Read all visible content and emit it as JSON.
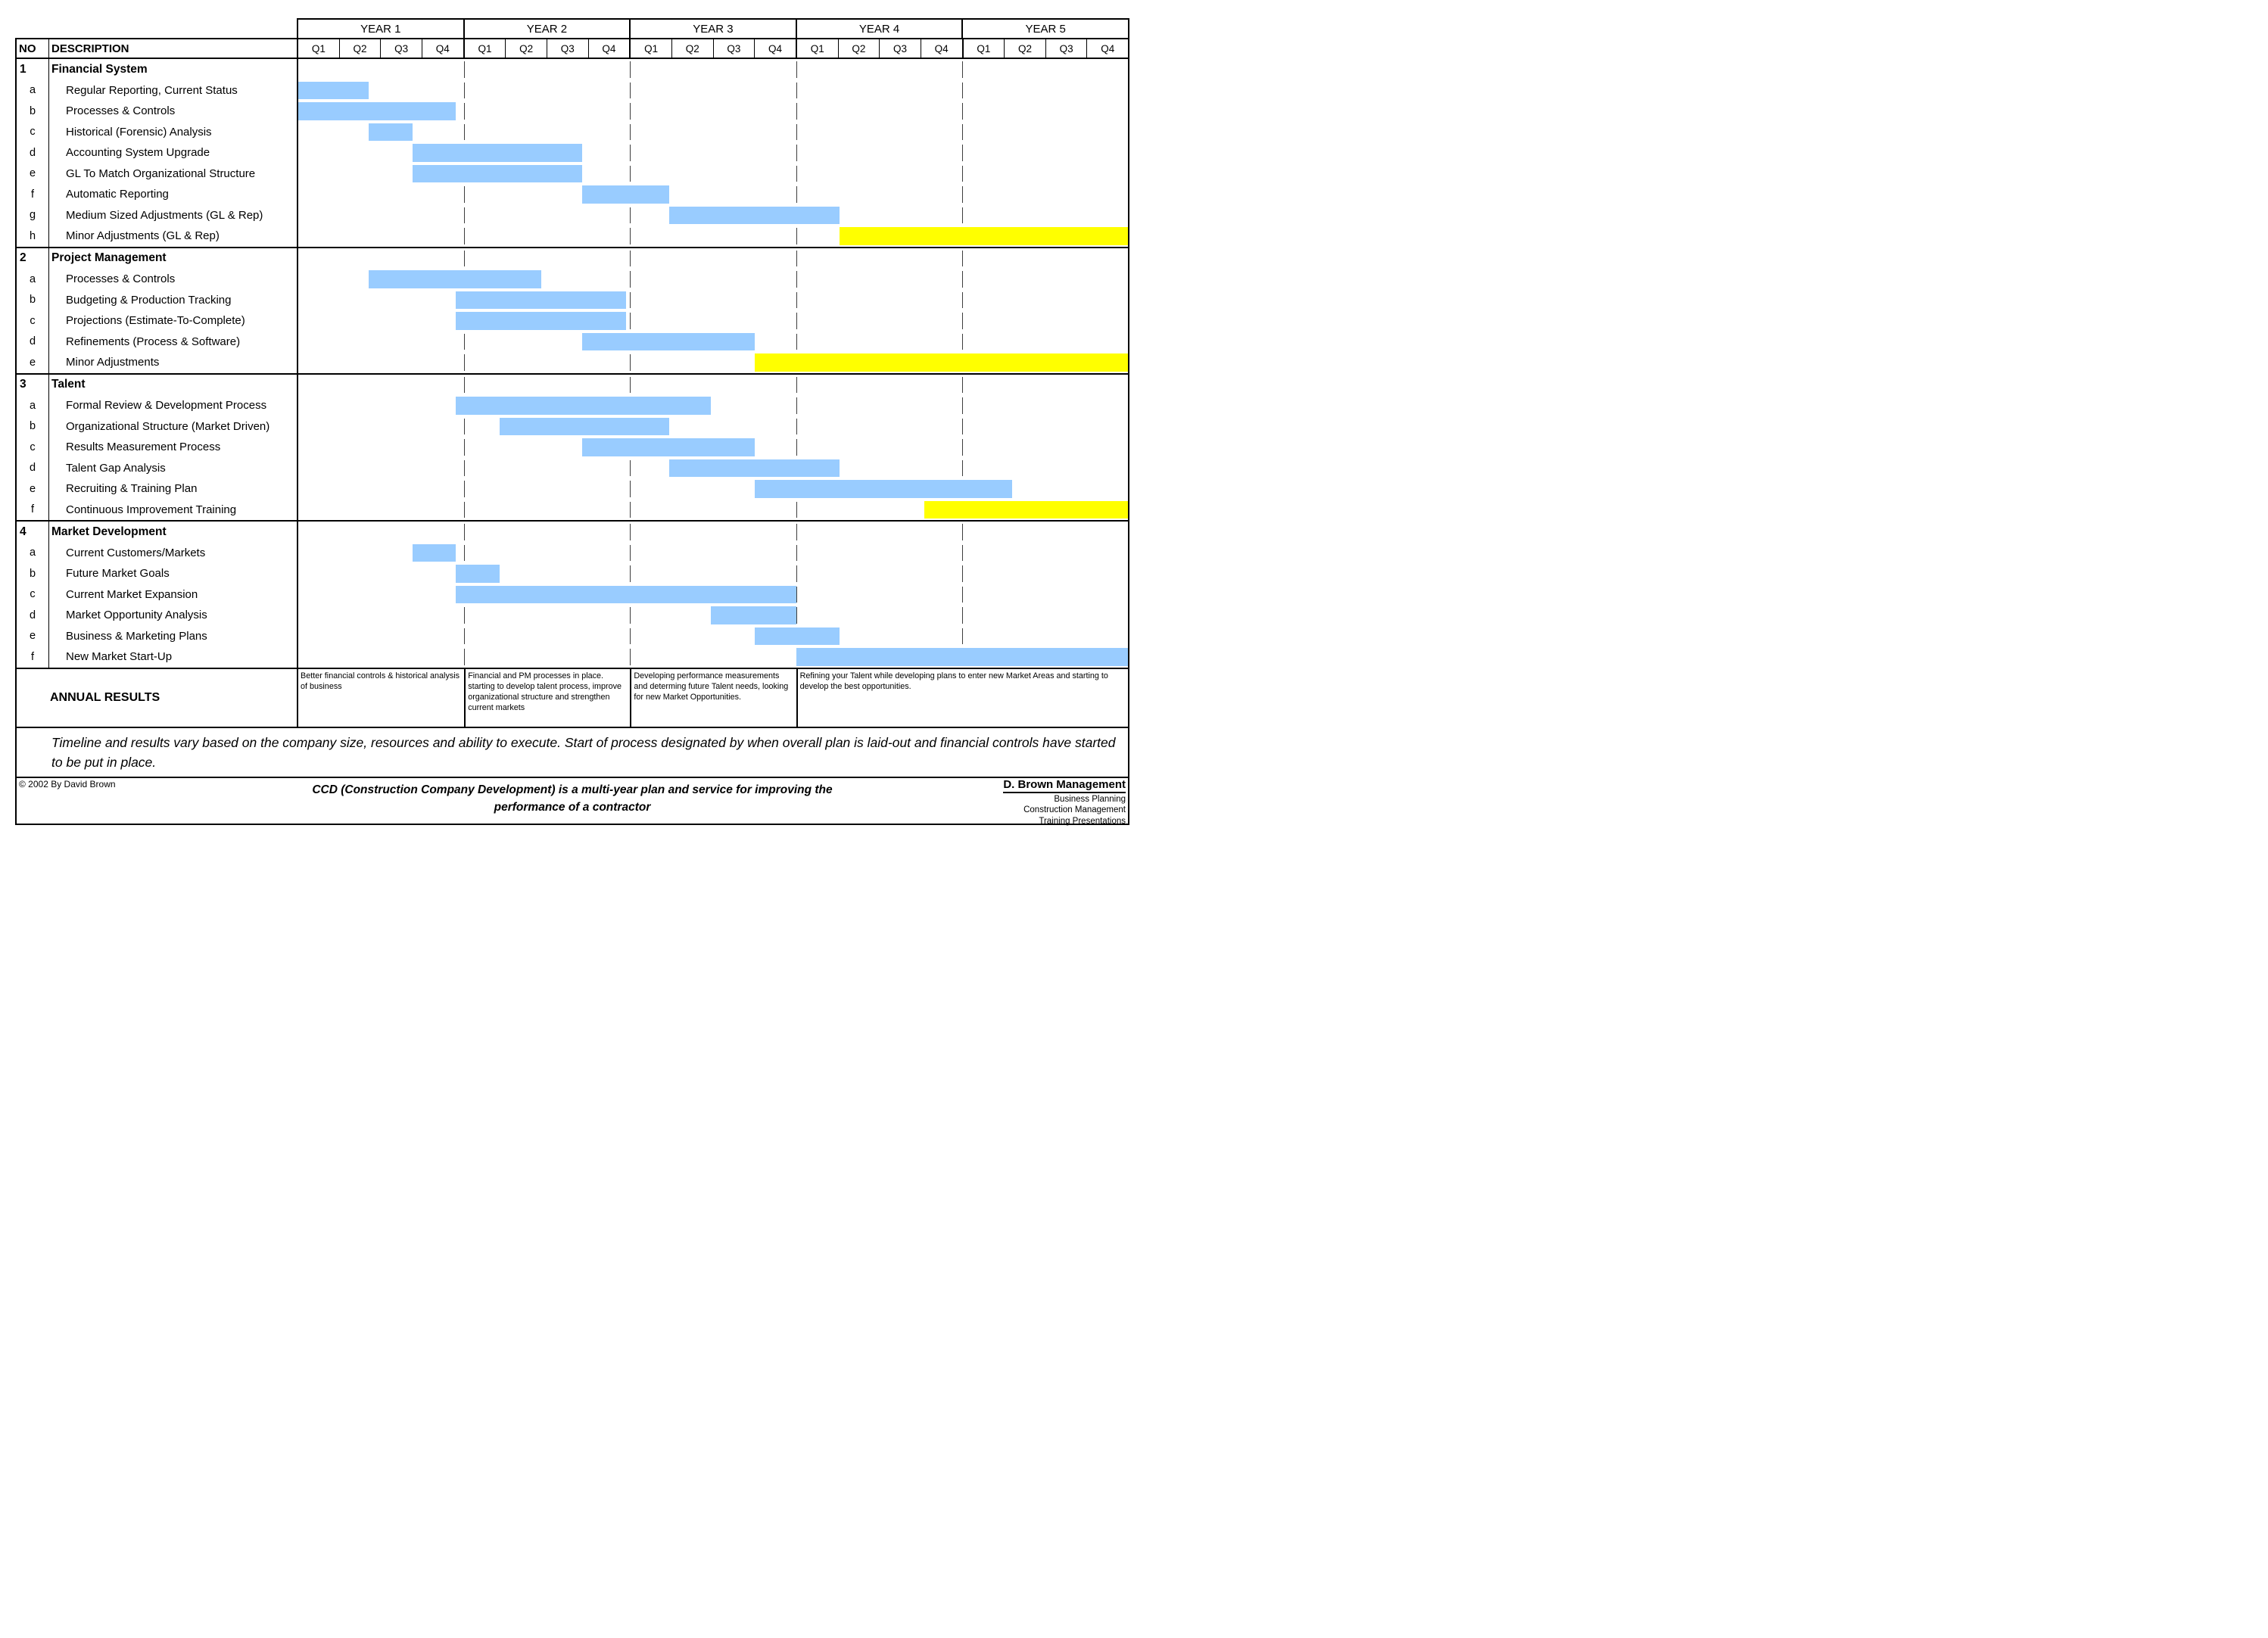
{
  "header": {
    "no_label": "NO",
    "description_label": "DESCRIPTION"
  },
  "colors": {
    "bar_blue": "#99CCFF",
    "bar_yellow": "#FFFF00",
    "gridline": "#3D3D3D"
  },
  "chart_data": {
    "type": "bar",
    "variant": "gantt",
    "units": "quarters (0 = start of Year 1 Q1, 20 = end of Year 5 Q4)",
    "time_axis": {
      "years": [
        "YEAR 1",
        "YEAR 2",
        "YEAR 3",
        "YEAR 4",
        "YEAR 5"
      ],
      "quarter_labels": [
        "Q1",
        "Q2",
        "Q3",
        "Q4"
      ],
      "total_quarters": 20
    },
    "sections": [
      {
        "no": "1",
        "title": "Financial System",
        "items": [
          {
            "no": "a",
            "label": "Regular Reporting, Current Status",
            "bar": {
              "start": 0,
              "end": 1.7,
              "color": "blue"
            }
          },
          {
            "no": "b",
            "label": "Processes & Controls",
            "bar": {
              "start": 0,
              "end": 3.8,
              "color": "blue"
            }
          },
          {
            "no": "c",
            "label": "Historical (Forensic) Analysis",
            "bar": {
              "start": 1.7,
              "end": 2.75,
              "color": "blue"
            }
          },
          {
            "no": "d",
            "label": "Accounting System Upgrade",
            "bar": {
              "start": 2.75,
              "end": 6.85,
              "color": "blue"
            }
          },
          {
            "no": "e",
            "label": "GL To Match Organizational Structure",
            "bar": {
              "start": 2.75,
              "end": 6.85,
              "color": "blue"
            }
          },
          {
            "no": "f",
            "label": "Automatic Reporting",
            "bar": {
              "start": 6.85,
              "end": 8.95,
              "color": "blue"
            }
          },
          {
            "no": "g",
            "label": "Medium Sized Adjustments (GL & Rep)",
            "bar": {
              "start": 8.95,
              "end": 13.05,
              "color": "blue"
            }
          },
          {
            "no": "h",
            "label": "Minor Adjustments (GL & Rep)",
            "bar": {
              "start": 13.05,
              "end": 20,
              "color": "yellow"
            }
          }
        ]
      },
      {
        "no": "2",
        "title": "Project Management",
        "items": [
          {
            "no": "a",
            "label": "Processes & Controls",
            "bar": {
              "start": 1.7,
              "end": 5.85,
              "color": "blue"
            }
          },
          {
            "no": "b",
            "label": "Budgeting & Production Tracking",
            "bar": {
              "start": 3.8,
              "end": 7.9,
              "color": "blue"
            }
          },
          {
            "no": "c",
            "label": "Projections (Estimate-To-Complete)",
            "bar": {
              "start": 3.8,
              "end": 7.9,
              "color": "blue"
            }
          },
          {
            "no": "d",
            "label": "Refinements (Process & Software)",
            "bar": {
              "start": 6.85,
              "end": 11.0,
              "color": "blue"
            }
          },
          {
            "no": "e",
            "label": "Minor Adjustments",
            "bar": {
              "start": 11.0,
              "end": 20,
              "color": "yellow"
            }
          }
        ]
      },
      {
        "no": "3",
        "title": "Talent",
        "items": [
          {
            "no": "a",
            "label": "Formal Review & Development Process",
            "bar": {
              "start": 3.8,
              "end": 9.95,
              "color": "blue"
            }
          },
          {
            "no": "b",
            "label": "Organizational Structure (Market Driven)",
            "bar": {
              "start": 4.85,
              "end": 8.95,
              "color": "blue"
            }
          },
          {
            "no": "c",
            "label": "Results Measurement Process",
            "bar": {
              "start": 6.85,
              "end": 11.0,
              "color": "blue"
            }
          },
          {
            "no": "d",
            "label": "Talent Gap Analysis",
            "bar": {
              "start": 8.95,
              "end": 13.05,
              "color": "blue"
            }
          },
          {
            "no": "e",
            "label": "Recruiting & Training Plan",
            "bar": {
              "start": 11.0,
              "end": 17.2,
              "color": "blue"
            }
          },
          {
            "no": "f",
            "label": "Continuous Improvement Training",
            "bar": {
              "start": 15.1,
              "end": 20,
              "color": "yellow"
            }
          }
        ]
      },
      {
        "no": "4",
        "title": "Market Development",
        "items": [
          {
            "no": "a",
            "label": "Current Customers/Markets",
            "bar": {
              "start": 2.75,
              "end": 3.8,
              "color": "blue"
            }
          },
          {
            "no": "b",
            "label": "Future Market Goals",
            "bar": {
              "start": 3.8,
              "end": 4.85,
              "color": "blue"
            }
          },
          {
            "no": "c",
            "label": "Current Market Expansion",
            "bar": {
              "start": 3.8,
              "end": 12.0,
              "color": "blue"
            }
          },
          {
            "no": "d",
            "label": "Market Opportunity Analysis",
            "bar": {
              "start": 9.95,
              "end": 12.0,
              "color": "blue"
            }
          },
          {
            "no": "e",
            "label": "Business & Marketing Plans",
            "bar": {
              "start": 11.0,
              "end": 13.05,
              "color": "blue"
            }
          },
          {
            "no": "f",
            "label": "New Market Start-Up",
            "bar": {
              "start": 12.0,
              "end": 20,
              "color": "blue"
            }
          }
        ]
      }
    ],
    "annual_results": {
      "label": "ANNUAL RESULTS",
      "cells": [
        {
          "span_quarters": 4,
          "text": "Better financial controls & historical analysis of business"
        },
        {
          "span_quarters": 4,
          "text": "Financial and PM processes in place. starting to develop talent process, improve organizational structure and strengthen current markets"
        },
        {
          "span_quarters": 4,
          "text": "Developing performance measurements and determing future Talent needs, looking for new Market Opportunities."
        },
        {
          "span_quarters": 8,
          "text": "Refining your Talent while developing plans to enter new Market Areas and starting to develop the best opportunities."
        }
      ]
    }
  },
  "footnote": "Timeline and results vary based on the company size, resources and ability to execute.  Start of process designated by when overall plan is laid-out and financial controls have started to be put in place.",
  "footer": {
    "copyright": "© 2002 By David Brown",
    "statement": "CCD (Construction Company Development) is a multi-year plan and service for improving the performance of a contractor",
    "brand": "D. Brown Management",
    "brand_lines": [
      "Business Planning",
      "Construction Management",
      "Training Presentations"
    ]
  }
}
